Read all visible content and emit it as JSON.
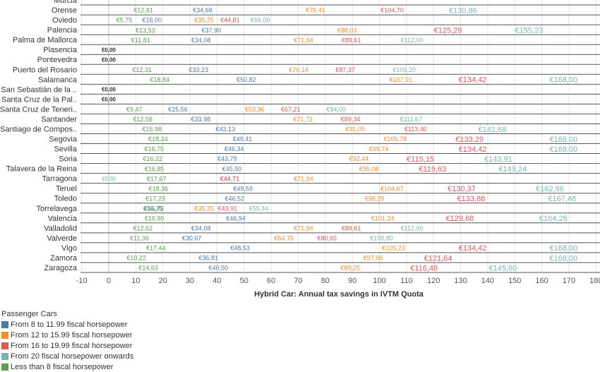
{
  "chart_data": {
    "type": "scatter",
    "xlabel": "Hybrid Car: Annual tax savings in IVTM Quota",
    "xlim": [
      -10,
      180
    ],
    "xticks": [
      -10,
      0,
      10,
      20,
      30,
      40,
      50,
      60,
      70,
      80,
      90,
      100,
      110,
      120,
      130,
      140,
      150,
      160,
      170,
      180
    ],
    "legend_placement": "bottom-left",
    "legend_title": "Passenger Cars",
    "series": [
      {
        "name": "From 8 to 11.99 fiscal horsepower",
        "color": "#4e79a7"
      },
      {
        "name": "From 12 to 15.99 fiscal horsepower",
        "color": "#f28e2b"
      },
      {
        "name": "From 16 to 19.99 fiscal horsepower",
        "color": "#e15759"
      },
      {
        "name": "From 20 fiscal horsepower onwards",
        "color": "#76b7b2"
      },
      {
        "name": "Less than 8 fiscal horsepower",
        "color": "#59a14f"
      }
    ],
    "rows": [
      {
        "city": "Murcia",
        "values": [
          null,
          null,
          null,
          null,
          null
        ]
      },
      {
        "city": "Orense",
        "values": [
          34.68,
          76.41,
          104.7,
          130.86,
          12.81
        ]
      },
      {
        "city": "Oviedo",
        "values": [
          16.0,
          35.25,
          44.81,
          56.0,
          5.75
        ]
      },
      {
        "city": "Palencia",
        "values": [
          37.9,
          88.03,
          125.29,
          155.23,
          13.53
        ]
      },
      {
        "city": "Palma de Mallorca",
        "values": [
          34.08,
          71.94,
          89.61,
          112.0,
          11.81
        ]
      },
      {
        "city": "Plasencia",
        "values": [
          0.0,
          null,
          null,
          null,
          null
        ]
      },
      {
        "city": "Pontevedra",
        "values": [
          0.0,
          null,
          null,
          null,
          null
        ]
      },
      {
        "city": "Puerto del Rosario",
        "values": [
          33.23,
          70.14,
          87.37,
          109.2,
          12.31
        ]
      },
      {
        "city": "Salamanca",
        "values": [
          50.82,
          107.91,
          134.42,
          168.0,
          18.84
        ]
      },
      {
        "city": "San Sebastián de la ..",
        "values": [
          0.0,
          null,
          null,
          null,
          null
        ]
      },
      {
        "city": "Santa Cruz de la Pal..",
        "values": [
          0.0,
          null,
          null,
          null,
          null
        ]
      },
      {
        "city": "Santa Cruz de Teneri..",
        "values": [
          25.56,
          53.96,
          67.21,
          84.0,
          9.47
        ]
      },
      {
        "city": "Santander",
        "values": [
          33.98,
          71.73,
          89.34,
          111.67,
          12.58
        ]
      },
      {
        "city": "Santiago de Compos..",
        "values": [
          43.13,
          91.05,
          113.4,
          141.68,
          15.98
        ]
      },
      {
        "city": "Segovia",
        "values": [
          49.41,
          105.78,
          133.29,
          168.0,
          18.24
        ]
      },
      {
        "city": "Sevilla",
        "values": [
          46.34,
          99.74,
          134.42,
          168.0,
          16.75
        ]
      },
      {
        "city": "Soria",
        "values": [
          43.79,
          92.44,
          115.15,
          143.91,
          16.22
        ]
      },
      {
        "city": "Talavera de la Reina",
        "values": [
          45.5,
          96.08,
          119.63,
          149.24,
          16.85
        ]
      },
      {
        "city": "Tarragona",
        "values": [
          44.71,
          71.94,
          44.71,
          0.0,
          17.67
        ]
      },
      {
        "city": "Teruel",
        "values": [
          49.59,
          104.67,
          130.37,
          162.96,
          18.36
        ]
      },
      {
        "city": "Toledo",
        "values": [
          46.52,
          98.2,
          133.88,
          167.48,
          17.23
        ]
      },
      {
        "city": "Torrelavega",
        "values": [
          16.35,
          35.25,
          43.91,
          55.44,
          16.73
        ]
      },
      {
        "city": "Valencia",
        "values": [
          46.94,
          101.24,
          129.68,
          164.26,
          16.9
        ]
      },
      {
        "city": "Valladolid",
        "values": [
          34.08,
          71.94,
          89.61,
          112.0,
          12.62
        ]
      },
      {
        "city": "Valverde",
        "values": [
          30.67,
          64.75,
          80.65,
          100.8,
          11.36
        ]
      },
      {
        "city": "Vigo",
        "values": [
          48.53,
          105.23,
          134.42,
          168.0,
          17.44
        ]
      },
      {
        "city": "Zamora",
        "values": [
          36.81,
          97.66,
          121.64,
          168.0,
          10.22
        ]
      },
      {
        "city": "Zaragoza",
        "values": [
          40.5,
          89.25,
          116.48,
          145.6,
          14.63
        ]
      }
    ]
  }
}
